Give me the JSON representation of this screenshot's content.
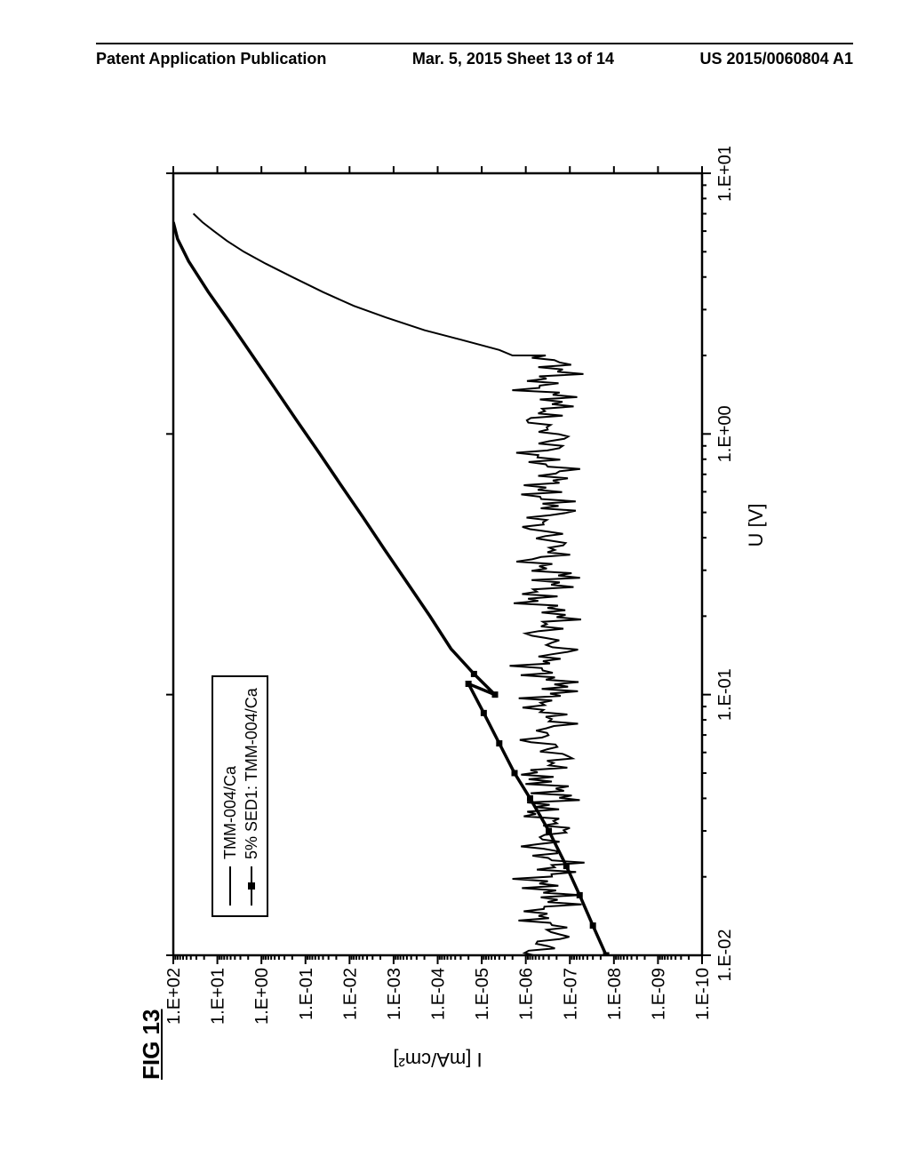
{
  "header": {
    "left": "Patent Application Publication",
    "center": "Mar. 5, 2015  Sheet 13 of 14",
    "right": "US 2015/0060804 A1"
  },
  "figure_label": "FIG 13",
  "chart": {
    "type": "line",
    "background_color": "#ffffff",
    "axis_color": "#000000",
    "xlabel": "U [V]",
    "ylabel": "I [mA/cm²]",
    "label_fontsize": 22,
    "tick_fontsize": 20,
    "x_scale": "log",
    "y_scale": "log",
    "xlim": [
      0.01,
      10
    ],
    "ylim": [
      1e-10,
      100
    ],
    "x_ticks": [
      "1.E-02",
      "1.E-01",
      "1.E+00",
      "1.E+01"
    ],
    "y_ticks": [
      "1.E-10",
      "1.E-09",
      "1.E-08",
      "1.E-07",
      "1.E-06",
      "1.E-05",
      "1.E-04",
      "1.E-03",
      "1.E-02",
      "1.E-01",
      "1.E+00",
      "1.E+01",
      "1.E+02"
    ],
    "grid": false,
    "legend": {
      "position": "upper-left-inside",
      "entries": [
        {
          "label": "TMM-004/Ca",
          "marker": "line",
          "stroke": "#000000",
          "stroke_width": 2
        },
        {
          "label": "5% SED1: TMM-004/Ca",
          "marker": "line+square",
          "stroke": "#000000",
          "stroke_width": 2,
          "marker_size": 7
        }
      ]
    },
    "series": [
      {
        "name": "TMM-004/Ca",
        "label": "TMM-004/Ca",
        "stroke": "#000000",
        "stroke_width": 2,
        "marker": "none",
        "noise_below_x": 2.0,
        "noise_y_center": 3e-07,
        "noise_y_amplitude_decades": 0.9,
        "points": [
          [
            0.01,
            2e-07
          ],
          [
            0.015,
            8e-08
          ],
          [
            0.02,
            5e-07
          ],
          [
            0.025,
            9e-08
          ],
          [
            0.03,
            4e-07
          ],
          [
            0.035,
            1.2e-07
          ],
          [
            0.04,
            6e-07
          ],
          [
            0.05,
            1e-07
          ],
          [
            0.06,
            5e-07
          ],
          [
            0.07,
            1.4e-07
          ],
          [
            0.08,
            4e-07
          ],
          [
            0.09,
            1.6e-07
          ],
          [
            0.1,
            5e-07
          ],
          [
            0.12,
            1.3e-07
          ],
          [
            0.15,
            7e-07
          ],
          [
            0.18,
            1.2e-07
          ],
          [
            0.2,
            6e-07
          ],
          [
            0.25,
            9e-08
          ],
          [
            0.3,
            8e-07
          ],
          [
            0.35,
            1e-07
          ],
          [
            0.4,
            9e-07
          ],
          [
            0.45,
            8e-08
          ],
          [
            0.5,
            1e-06
          ],
          [
            0.6,
            7e-08
          ],
          [
            0.7,
            1.2e-06
          ],
          [
            0.8,
            6e-08
          ],
          [
            0.9,
            1.3e-06
          ],
          [
            1.0,
            5e-08
          ],
          [
            1.1,
            1.5e-06
          ],
          [
            1.2,
            6e-08
          ],
          [
            1.3,
            1.6e-06
          ],
          [
            1.4,
            5e-08
          ],
          [
            1.5,
            1.5e-06
          ],
          [
            1.6,
            7e-08
          ],
          [
            1.7,
            1.2e-06
          ],
          [
            1.8,
            1e-07
          ],
          [
            1.9,
            1.5e-06
          ],
          [
            2.0,
            2e-06
          ],
          [
            2.1,
            4e-06
          ],
          [
            2.3,
            3e-05
          ],
          [
            2.5,
            0.0002
          ],
          [
            2.8,
            0.0015
          ],
          [
            3.1,
            0.008
          ],
          [
            3.5,
            0.04
          ],
          [
            4.0,
            0.2
          ],
          [
            4.5,
            0.8
          ],
          [
            5.0,
            2.5
          ],
          [
            5.5,
            6.0
          ],
          [
            6.0,
            12.0
          ],
          [
            6.5,
            22.0
          ],
          [
            7.0,
            35.0
          ]
        ]
      },
      {
        "name": "5pct-SED1-TMM-004/Ca",
        "label": "5% SED1: TMM-004/Ca",
        "stroke": "#000000",
        "stroke_width": 3.5,
        "marker": "square",
        "marker_size": 7,
        "marker_fill": "#000000",
        "points": [
          [
            0.01,
            1.5e-08
          ],
          [
            0.013,
            3e-08
          ],
          [
            0.017,
            6e-08
          ],
          [
            0.022,
            1.2e-07
          ],
          [
            0.03,
            3e-07
          ],
          [
            0.04,
            8e-07
          ],
          [
            0.05,
            1.8e-06
          ],
          [
            0.065,
            4e-06
          ],
          [
            0.085,
            9e-06
          ],
          [
            0.11,
            2e-05
          ],
          [
            0.1,
            5e-06
          ],
          [
            0.12,
            1.5e-05
          ],
          [
            0.15,
            5e-05
          ],
          [
            0.2,
            0.00015
          ],
          [
            0.27,
            0.0005
          ],
          [
            0.36,
            0.0016
          ],
          [
            0.48,
            0.005
          ],
          [
            0.64,
            0.016
          ],
          [
            0.85,
            0.05
          ],
          [
            1.13,
            0.16
          ],
          [
            1.5,
            0.5
          ],
          [
            2.0,
            1.6
          ],
          [
            2.65,
            5.0
          ],
          [
            3.5,
            16.0
          ],
          [
            4.6,
            45.0
          ],
          [
            5.6,
            80.0
          ],
          [
            6.5,
            100.0
          ]
        ]
      }
    ]
  }
}
